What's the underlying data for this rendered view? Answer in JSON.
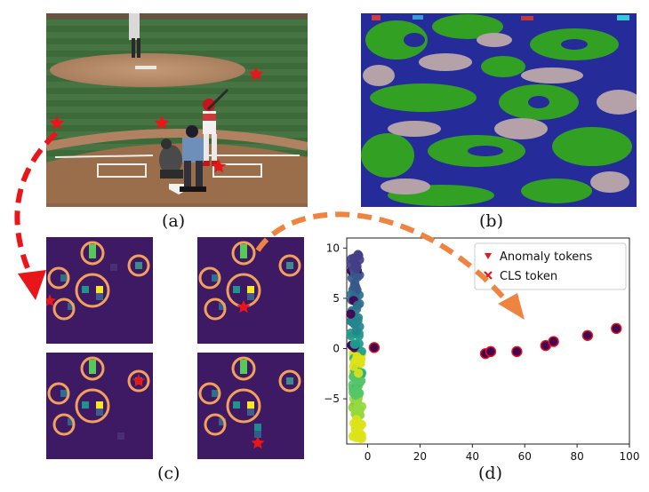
{
  "captions": {
    "a": "(a)",
    "b": "(b)",
    "c": "(c)",
    "d": "(d)"
  },
  "colors": {
    "star": "#e8161b",
    "arrow_red": "#e8161b",
    "arrow_orange": "#ee8440",
    "circle": "#f3a05b",
    "map_navy": "#262b9a",
    "map_green": "#32a022",
    "map_gray": "#b5a2a8",
    "heat_bg": "#3d1a63"
  },
  "chart_data": {
    "type": "scatter",
    "xlim": [
      -8,
      100
    ],
    "ylim": [
      -9.5,
      11
    ],
    "xticks": [
      0,
      20,
      40,
      60,
      80,
      100
    ],
    "yticks": [
      -5,
      0,
      5,
      10
    ],
    "legend": {
      "placement": "top-right",
      "entries": [
        {
          "label": "Anomaly tokens",
          "marker": "triangle-down",
          "color": "#e8161b"
        },
        {
          "label": "CLS token",
          "marker": "x",
          "color": "#e8161b"
        }
      ]
    },
    "outlier_points": [
      {
        "x": 45,
        "y": -0.5
      },
      {
        "x": 47,
        "y": -0.3
      },
      {
        "x": 57,
        "y": -0.3
      },
      {
        "x": 68,
        "y": 0.3
      },
      {
        "x": 71,
        "y": 0.7
      },
      {
        "x": 84,
        "y": 1.3
      },
      {
        "x": 95,
        "y": 2.0
      },
      {
        "x": 2.5,
        "y": 0.1
      }
    ]
  }
}
